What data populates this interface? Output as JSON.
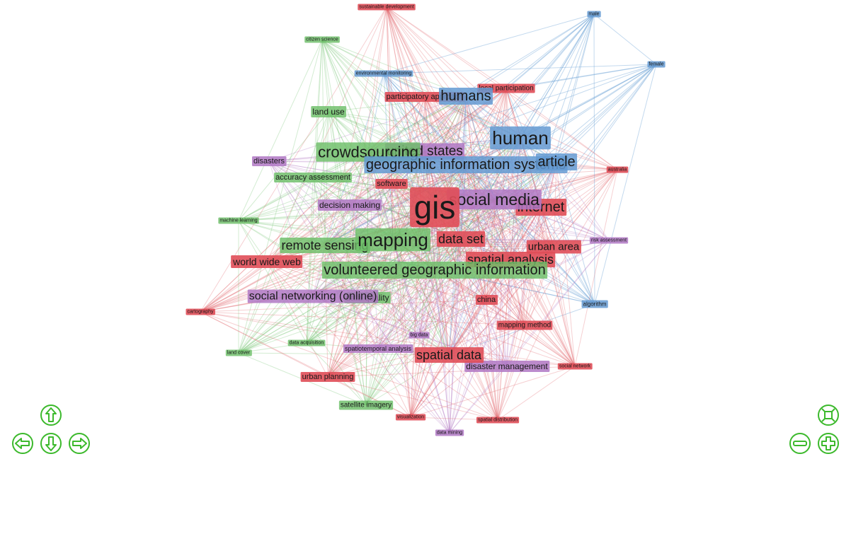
{
  "colors": {
    "red": "#e0555d",
    "green": "#6cc06a",
    "blue": "#6a9fd4",
    "purple": "#b27cc4",
    "control": "#3cb92c"
  },
  "nodes": [
    {
      "id": "gis",
      "label": "gis",
      "cluster": "red",
      "weight": 10
    },
    {
      "id": "mapping",
      "label": "mapping",
      "cluster": "green",
      "weight": 6
    },
    {
      "id": "vgi",
      "label": "volunteered geographic information",
      "cluster": "green",
      "weight": 5
    },
    {
      "id": "human",
      "label": "human",
      "cluster": "blue",
      "weight": 6
    },
    {
      "id": "crowdsourcing",
      "label": "crowdsourcing",
      "cluster": "green",
      "weight": 5
    },
    {
      "id": "united_states",
      "label": "united states",
      "cluster": "purple",
      "weight": 4
    },
    {
      "id": "gis_systems",
      "label": "geographic information systems",
      "cluster": "blue",
      "weight": 5
    },
    {
      "id": "humans",
      "label": "humans",
      "cluster": "blue",
      "weight": 5
    },
    {
      "id": "article",
      "label": "article",
      "cluster": "blue",
      "weight": 5
    },
    {
      "id": "social_media",
      "label": "social media",
      "cluster": "purple",
      "weight": 6
    },
    {
      "id": "internet",
      "label": "internet",
      "cluster": "red",
      "weight": 5
    },
    {
      "id": "data_set",
      "label": "data set",
      "cluster": "red",
      "weight": 4
    },
    {
      "id": "remote_sensing",
      "label": "remote sensing",
      "cluster": "green",
      "weight": 4
    },
    {
      "id": "urban_area",
      "label": "urban area",
      "cluster": "red",
      "weight": 3
    },
    {
      "id": "spatial_analysis",
      "label": "spatial analysis",
      "cluster": "red",
      "weight": 4
    },
    {
      "id": "spatial_data",
      "label": "spatial data",
      "cluster": "red",
      "weight": 4
    },
    {
      "id": "social_networking",
      "label": "social networking (online)",
      "cluster": "purple",
      "weight": 4
    },
    {
      "id": "data_quality",
      "label": "data quality",
      "cluster": "green",
      "weight": 2
    },
    {
      "id": "world_wide_web",
      "label": "world wide web",
      "cluster": "red",
      "weight": 3
    },
    {
      "id": "decision_making",
      "label": "decision making",
      "cluster": "purple",
      "weight": 2
    },
    {
      "id": "software",
      "label": "software",
      "cluster": "red",
      "weight": 2
    },
    {
      "id": "accuracy_assessment",
      "label": "accuracy assessment",
      "cluster": "green",
      "weight": 2
    },
    {
      "id": "disasters",
      "label": "disasters",
      "cluster": "purple",
      "weight": 2
    },
    {
      "id": "land_use",
      "label": "land use",
      "cluster": "green",
      "weight": 2
    },
    {
      "id": "participatory_approach",
      "label": "participatory approach",
      "cluster": "red",
      "weight": 2
    },
    {
      "id": "local_participation",
      "label": "local participation",
      "cluster": "red",
      "weight": 2
    },
    {
      "id": "environmental_monitoring",
      "label": "environmental monitoring",
      "cluster": "blue",
      "weight": 1
    },
    {
      "id": "citizen_science",
      "label": "citizen science",
      "cluster": "green",
      "weight": 1
    },
    {
      "id": "sustainable_development",
      "label": "sustainable development",
      "cluster": "red",
      "weight": 1
    },
    {
      "id": "male",
      "label": "male",
      "cluster": "blue",
      "weight": 1
    },
    {
      "id": "female",
      "label": "female",
      "cluster": "blue",
      "weight": 1
    },
    {
      "id": "australia",
      "label": "australia",
      "cluster": "red",
      "weight": 1
    },
    {
      "id": "machine_learning",
      "label": "machine learning",
      "cluster": "green",
      "weight": 1
    },
    {
      "id": "risk_assessment",
      "label": "risk assessment",
      "cluster": "purple",
      "weight": 1
    },
    {
      "id": "china",
      "label": "china",
      "cluster": "red",
      "weight": 2
    },
    {
      "id": "algorithm",
      "label": "algorithm",
      "cluster": "blue",
      "weight": 1
    },
    {
      "id": "mapping_method",
      "label": "mapping method",
      "cluster": "red",
      "weight": 2
    },
    {
      "id": "cartography",
      "label": "cartography",
      "cluster": "red",
      "weight": 1
    },
    {
      "id": "big_data",
      "label": "big data",
      "cluster": "purple",
      "weight": 1
    },
    {
      "id": "data_acquisition",
      "label": "data acquisition",
      "cluster": "green",
      "weight": 1
    },
    {
      "id": "spatiotemporal_analysis",
      "label": "spatiotemporal analysis",
      "cluster": "purple",
      "weight": 2
    },
    {
      "id": "land_cover",
      "label": "land cover",
      "cluster": "green",
      "weight": 1
    },
    {
      "id": "disaster_management",
      "label": "disaster management",
      "cluster": "purple",
      "weight": 3
    },
    {
      "id": "social_network",
      "label": "social network",
      "cluster": "red",
      "weight": 1
    },
    {
      "id": "urban_planning",
      "label": "urban planning",
      "cluster": "red",
      "weight": 2
    },
    {
      "id": "satellite_imagery",
      "label": "satellite imagery",
      "cluster": "green",
      "weight": 2
    },
    {
      "id": "visualization",
      "label": "visualization",
      "cluster": "red",
      "weight": 1
    },
    {
      "id": "spatial_distribution",
      "label": "spatial distribution",
      "cluster": "red",
      "weight": 1
    },
    {
      "id": "data_mining",
      "label": "data mining",
      "cluster": "purple",
      "weight": 1
    }
  ],
  "controls": [
    {
      "name": "pan-up",
      "icon": "arrow-up-icon"
    },
    {
      "name": "pan-left",
      "icon": "arrow-left-icon"
    },
    {
      "name": "pan-down",
      "icon": "arrow-down-icon"
    },
    {
      "name": "pan-right",
      "icon": "arrow-right-icon"
    },
    {
      "name": "fit-view",
      "icon": "fit-screen-icon"
    },
    {
      "name": "zoom-out",
      "icon": "zoom-out-icon"
    },
    {
      "name": "zoom-in",
      "icon": "zoom-in-icon"
    }
  ]
}
